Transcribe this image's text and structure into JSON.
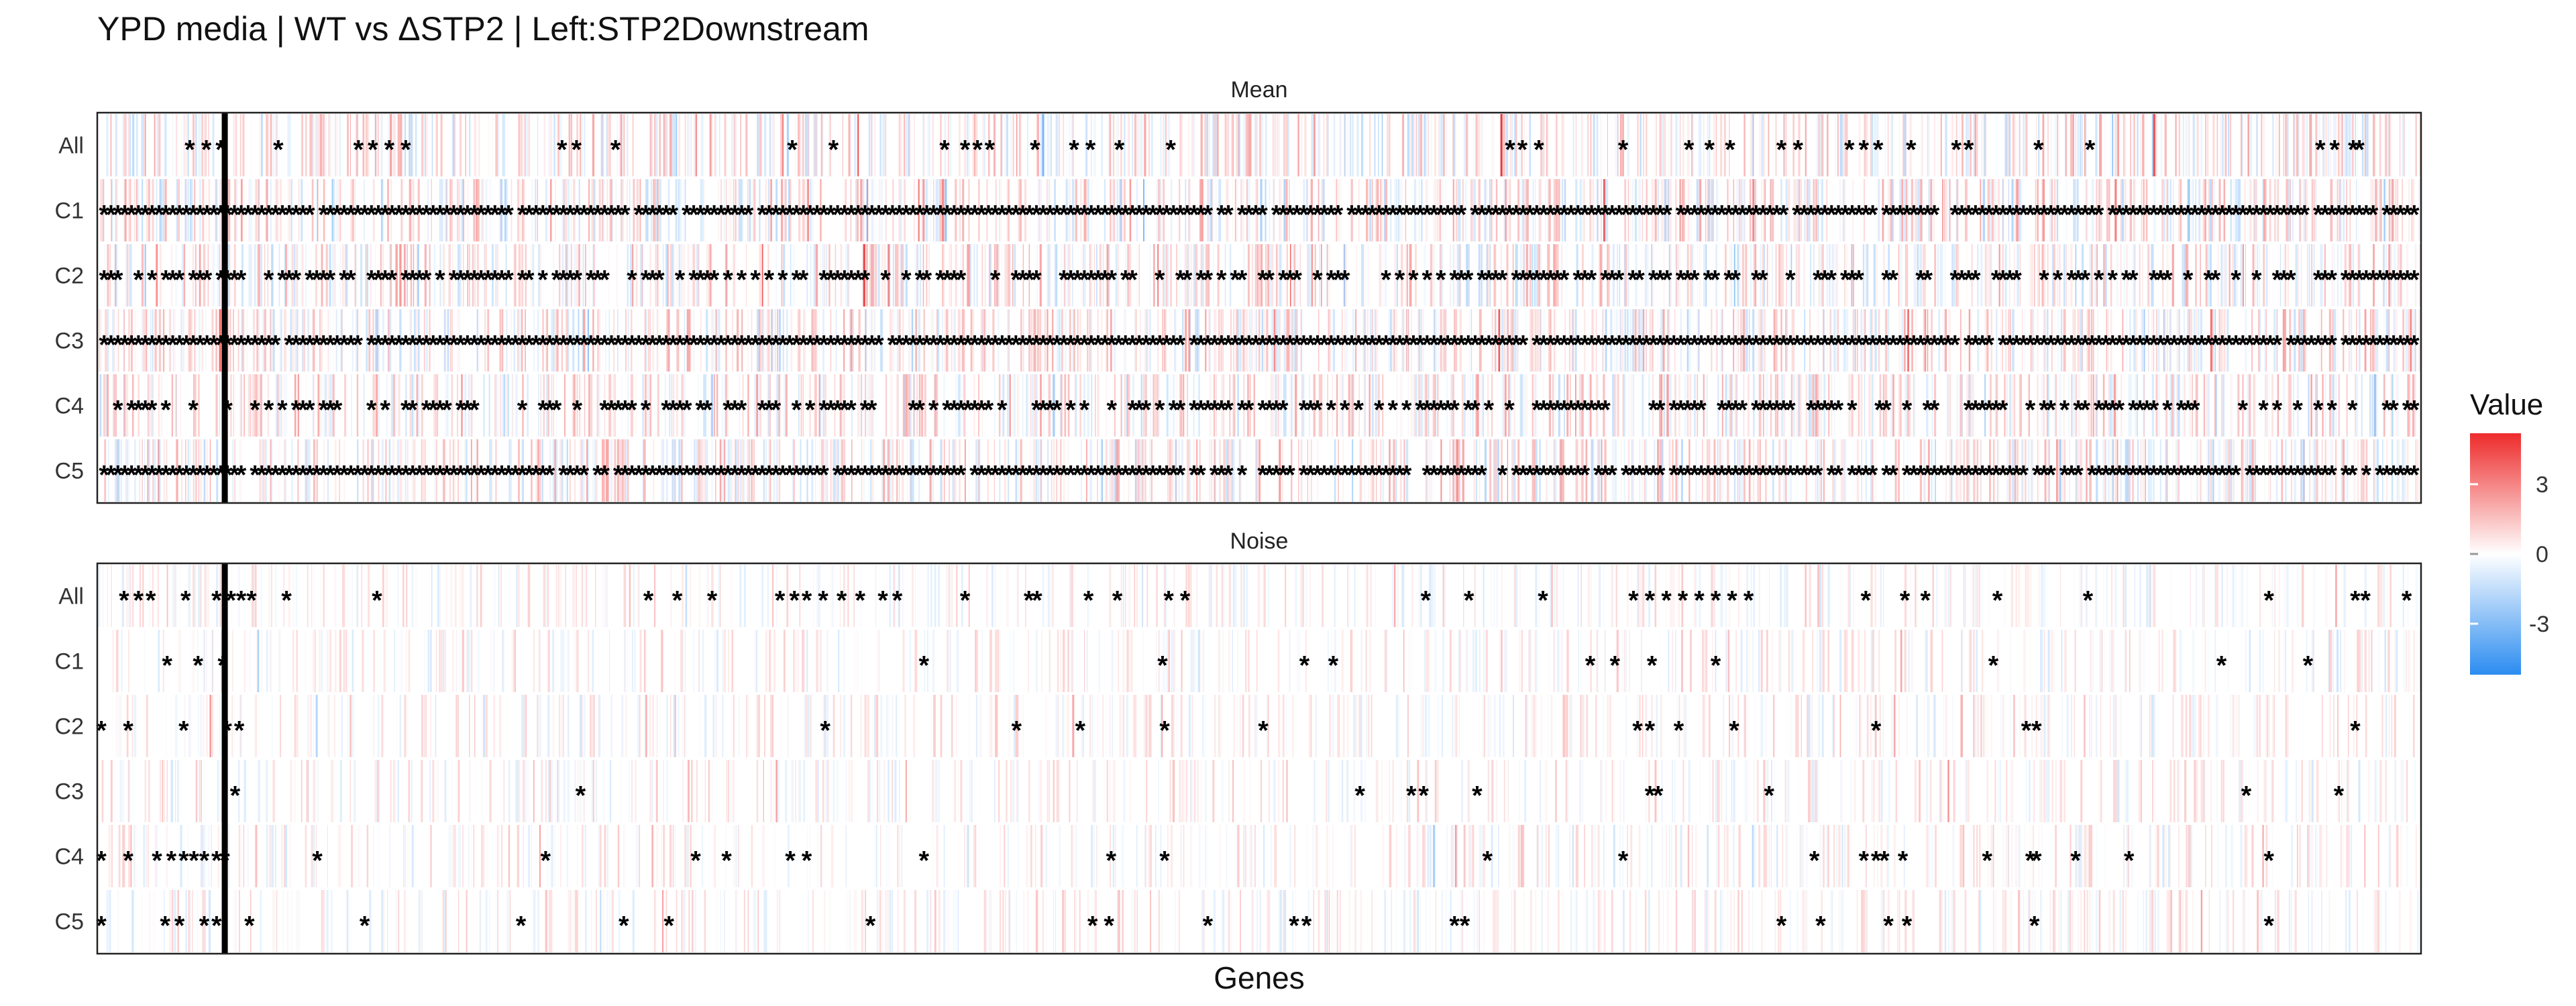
{
  "chart_data": {
    "type": "heatmap",
    "title": "YPD media | WT vs ΔSTP2 | Left:STP2Downstream",
    "xlabel": "Genes",
    "rows": [
      "All",
      "C1",
      "C2",
      "C3",
      "C4",
      "C5"
    ],
    "panels": [
      {
        "name": "Mean",
        "stars": {
          "All": [
            4.5,
            5.3,
            6.0,
            8.8,
            12.7,
            13.4,
            14.2,
            15.0,
            22.6,
            23.3,
            25.2,
            33.8,
            35.8,
            41.2,
            42.2,
            42.8,
            43.4,
            45.6,
            47.5,
            48.3,
            49.7,
            52.2,
            68.7,
            69.3,
            70.1,
            74.2,
            77.4,
            78.4,
            79.4,
            81.9,
            82.7,
            85.2,
            85.9,
            86.6,
            88.2,
            90.4,
            91.0,
            94.4,
            96.9,
            108.1,
            108.8,
            109.7,
            110.0,
            113.0,
            113.6
          ],
          "C1": {
            "density": 0.95,
            "seed": 11
          },
          "C2": {
            "density": 0.62,
            "seed": 23
          },
          "C3": {
            "density": 0.98,
            "seed": 37
          },
          "C4": {
            "density": 0.55,
            "seed": 41
          },
          "C5": {
            "density": 0.9,
            "seed": 53
          }
        }
      },
      {
        "name": "Noise",
        "stars": {
          "All": [
            1.3,
            2.0,
            2.6,
            4.3,
            5.8,
            6.5,
            7.0,
            7.5,
            9.2,
            13.6,
            26.8,
            28.2,
            29.9,
            33.2,
            33.9,
            34.5,
            35.3,
            36.2,
            37.1,
            38.2,
            38.9,
            42.2,
            45.3,
            45.7,
            48.2,
            49.6,
            52.1,
            52.9,
            64.6,
            66.7,
            70.3,
            74.7,
            75.5,
            76.3,
            77.1,
            77.9,
            78.7,
            79.5,
            80.3,
            86.0,
            87.9,
            88.9,
            92.4,
            96.8,
            105.6,
            109.8,
            110.3,
            112.3,
            112.9
          ],
          "C1": [
            3.4,
            4.9,
            6.1,
            40.2,
            51.8,
            58.7,
            60.1,
            72.6,
            73.8,
            75.6,
            78.7,
            92.2,
            103.3,
            107.5
          ],
          "C2": [
            0.2,
            1.5,
            4.2,
            6.3,
            6.9,
            35.4,
            44.7,
            47.8,
            51.9,
            56.7,
            74.9,
            75.5,
            76.9,
            79.6,
            86.5,
            93.8,
            94.3,
            109.8
          ],
          "C3": [
            6.7,
            23.5,
            61.4,
            63.9,
            64.5,
            67.1,
            75.5,
            75.9,
            81.3,
            104.5,
            109.0
          ],
          "C4": [
            0.2,
            1.5,
            2.9,
            3.6,
            4.2,
            4.7,
            5.2,
            5.8,
            6.2,
            10.7,
            21.8,
            29.1,
            30.6,
            33.7,
            34.5,
            40.2,
            49.3,
            51.9,
            67.6,
            74.2,
            83.5,
            85.9,
            86.5,
            86.9,
            87.8,
            91.9,
            94.0,
            94.3,
            96.2,
            98.8,
            105.6
          ],
          "C5": [
            0.2,
            3.3,
            4.0,
            5.2,
            5.8,
            7.4,
            13.0,
            20.6,
            25.6,
            27.8,
            37.6,
            48.4,
            49.2,
            54.0,
            58.2,
            58.8,
            66.0,
            66.5,
            81.9,
            83.8,
            87.1,
            88.0,
            94.2,
            105.6
          ]
        }
      }
    ],
    "divider_after_gene": 6.2,
    "n_genes": 113,
    "legend": {
      "title": "Value",
      "ticks": [
        3,
        0,
        -3
      ],
      "tick_labels": [
        "3",
        "0",
        "-3"
      ],
      "range": [
        -5,
        5
      ],
      "colors": {
        "low": "#2b8cf0",
        "mid": "#ffffff",
        "high": "#ee2b2b"
      }
    }
  }
}
